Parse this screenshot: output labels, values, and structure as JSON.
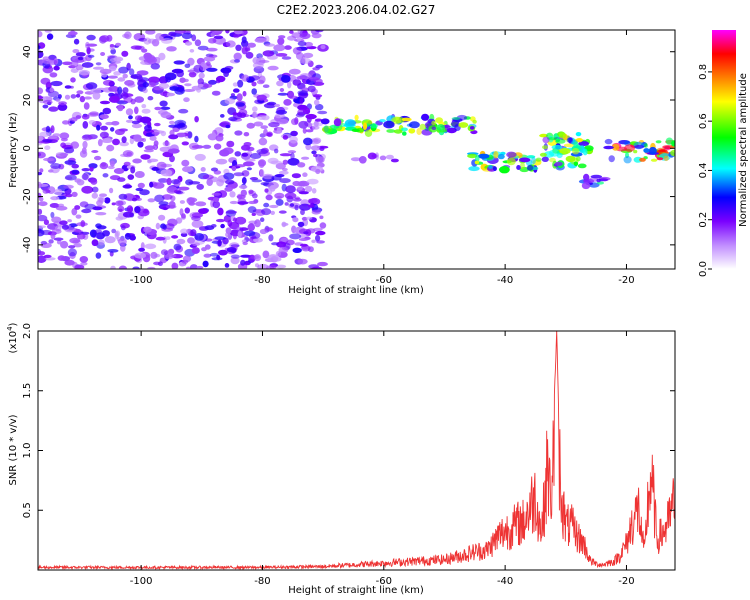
{
  "figure_title": "C2E2.2023.206.04.02.G27",
  "chart_data": [
    {
      "type": "heatmap",
      "xlabel": "Height of straight line (km)",
      "ylabel": "Frequency (Hz)",
      "xlim": [
        -117,
        -12
      ],
      "ylim": [
        -50,
        49
      ],
      "x_ticks": [
        -100,
        -80,
        -60,
        -40,
        -20
      ],
      "y_ticks": [
        40,
        20,
        0,
        -20,
        -40
      ],
      "colorbar": {
        "label": "Normalized spectral amplitude",
        "range": [
          0,
          0.97
        ],
        "ticks": [
          "0.0",
          "0.2",
          "0.4",
          "0.6",
          "0.8"
        ],
        "colormap": [
          "#ffffff",
          "#c08cff",
          "#7a00ff",
          "#0000ff",
          "#00ffff",
          "#00ff00",
          "#ffff00",
          "#ff8000",
          "#ff0000",
          "#ff00ff"
        ]
      },
      "regions": [
        {
          "x": [
            -117,
            -70
          ],
          "y": [
            -50,
            49
          ],
          "amplitude": 0.15
        },
        {
          "x": [
            -70,
            -45
          ],
          "y": [
            6,
            13
          ],
          "amplitude": 0.55
        },
        {
          "x": [
            -66,
            -58
          ],
          "y": [
            -6,
            -3
          ],
          "amplitude": 0.15
        },
        {
          "x": [
            -46,
            -34
          ],
          "y": [
            -9,
            -2
          ],
          "amplitude": 0.6
        },
        {
          "x": [
            -34,
            -26
          ],
          "y": [
            -8,
            6
          ],
          "amplitude": 0.55
        },
        {
          "x": [
            -27,
            -23
          ],
          "y": [
            -16,
            -11
          ],
          "amplitude": 0.4
        },
        {
          "x": [
            -23,
            -12
          ],
          "y": [
            -5,
            3
          ],
          "amplitude": 0.75
        }
      ]
    },
    {
      "type": "line",
      "xlabel": "Height of straight line (km)",
      "ylabel": "SNR (10 * v/v)",
      "y_scale_note": "(x10",
      "y_scale_exp": "4",
      "xlim": [
        -117,
        -12
      ],
      "ylim": [
        0,
        20000
      ],
      "x_ticks": [
        -100,
        -80,
        -60,
        -40,
        -20
      ],
      "y_ticks": [
        {
          "v": 5000,
          "label": "0.5"
        },
        {
          "v": 10000,
          "label": "1.0"
        },
        {
          "v": 15000,
          "label": "1.5"
        },
        {
          "v": 20000,
          "label": "2.0"
        }
      ],
      "color": "#ee3333",
      "series": [
        {
          "x": [
            -117,
            -110,
            -100,
            -90,
            -80,
            -75,
            -70,
            -65,
            -60,
            -55,
            -50,
            -47,
            -45,
            -43,
            -42,
            -41,
            -40,
            -39,
            -38,
            -37,
            -36,
            -35,
            -34,
            -33,
            -32.5,
            -32,
            -31.7,
            -31.5,
            -31.2,
            -31,
            -30.5,
            -30,
            -29,
            -28,
            -27,
            -26,
            -25,
            -24,
            -23,
            -22,
            -21,
            -20,
            -19,
            -18,
            -17.5,
            -17,
            -16.5,
            -16,
            -15.5,
            -15,
            -14,
            -13,
            -12.5,
            -12
          ],
          "y": [
            300,
            300,
            300,
            300,
            300,
            350,
            400,
            600,
            800,
            1000,
            1200,
            1700,
            2100,
            2300,
            3100,
            4000,
            4500,
            4800,
            5300,
            5500,
            7100,
            8500,
            4200,
            12000,
            8000,
            14200,
            16800,
            20000,
            13700,
            12000,
            7300,
            5100,
            5000,
            3800,
            3000,
            1100,
            700,
            600,
            800,
            1000,
            1800,
            3000,
            5600,
            7000,
            4000,
            2000,
            7500,
            10500,
            8000,
            3500,
            4300,
            5600,
            7000,
            7800
          ]
        }
      ]
    }
  ]
}
